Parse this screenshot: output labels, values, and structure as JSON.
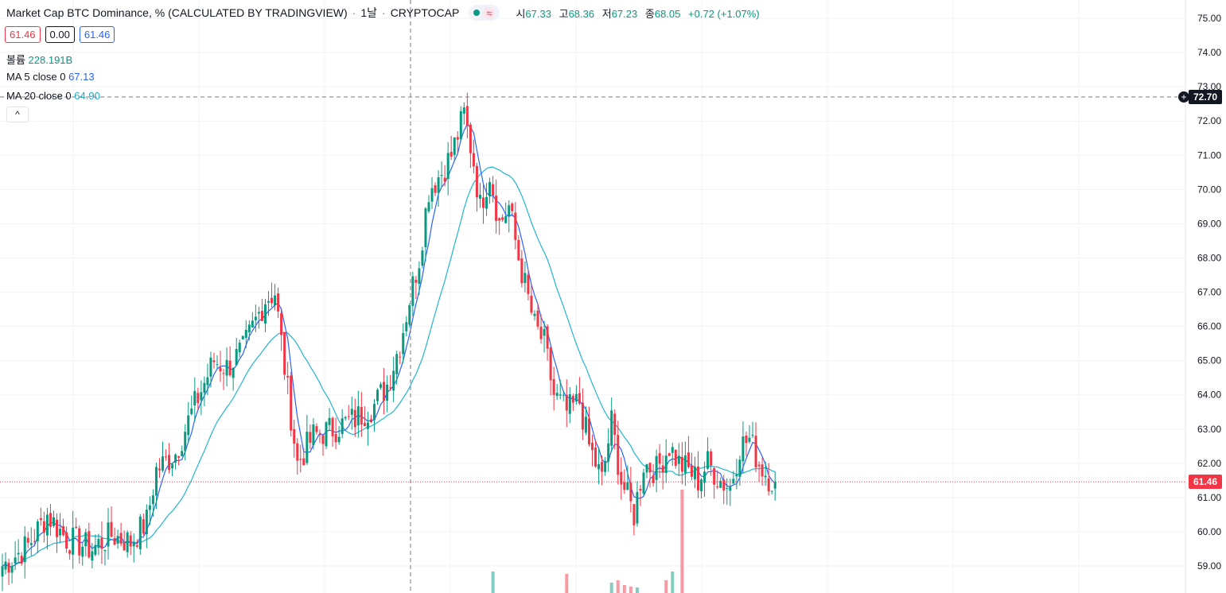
{
  "header": {
    "title": "Market Cap BTC Dominance, % (CALCULATED BY TRADINGVIEW)",
    "interval": "1날",
    "exchange": "CRYPTOCAP",
    "wave_icon": "≈",
    "ohlc": {
      "open_label": "시",
      "open": "67.33",
      "high_label": "고",
      "high": "68.36",
      "low_label": "저",
      "low": "67.23",
      "close_label": "종",
      "close": "68.05",
      "change": "+0.72 (+1.07%)"
    }
  },
  "price_boxes": {
    "bid": "61.46",
    "spread": "0.00",
    "ask": "61.46"
  },
  "indicators": {
    "volume_label": "볼륨",
    "volume_value": "228.191B",
    "ma5_label": "MA 5 close 0",
    "ma5_value": "67.13",
    "ma20_label": "MA 20 close 0",
    "ma20_value": "64.90"
  },
  "collapse_icon": "^",
  "crosshair_price": "72.70",
  "last_price": "61.46",
  "colors": {
    "up": "#089981",
    "down": "#f23645",
    "ma5": "#2962ff",
    "ma20": "#22b5d0"
  },
  "chart_data": {
    "type": "candlestick",
    "y_ticks": [
      "59.00",
      "60.00",
      "61.00",
      "62.00",
      "63.00",
      "64.00",
      "65.00",
      "66.00",
      "67.00",
      "68.00",
      "69.00",
      "70.00",
      "71.00",
      "72.00",
      "73.00",
      "74.00",
      "75.00"
    ],
    "ylim": [
      58.3,
      75.3
    ],
    "close_anchors": [
      [
        0,
        59.0
      ],
      [
        8,
        59.6
      ],
      [
        14,
        60.5
      ],
      [
        20,
        59.8
      ],
      [
        28,
        59.5
      ],
      [
        34,
        59.9
      ],
      [
        40,
        59.7
      ],
      [
        45,
        60.3
      ],
      [
        48,
        61.8
      ],
      [
        54,
        62.3
      ],
      [
        60,
        63.7
      ],
      [
        66,
        65.0
      ],
      [
        70,
        64.8
      ],
      [
        75,
        65.3
      ],
      [
        82,
        66.8
      ],
      [
        85,
        67.0
      ],
      [
        88,
        64.8
      ],
      [
        92,
        62.0
      ],
      [
        97,
        62.8
      ],
      [
        103,
        63.0
      ],
      [
        110,
        63.3
      ],
      [
        116,
        63.7
      ],
      [
        120,
        64.3
      ],
      [
        124,
        65.5
      ],
      [
        127,
        66.8
      ],
      [
        130,
        68.0
      ],
      [
        133,
        70.0
      ],
      [
        137,
        70.5
      ],
      [
        140,
        71.0
      ],
      [
        144,
        72.2
      ],
      [
        147,
        70.8
      ],
      [
        149,
        69.5
      ],
      [
        152,
        70.5
      ],
      [
        155,
        69.0
      ],
      [
        158,
        69.5
      ],
      [
        161,
        68.0
      ],
      [
        163,
        67.2
      ],
      [
        166,
        66.0
      ],
      [
        169,
        65.5
      ],
      [
        172,
        64.0
      ],
      [
        176,
        63.5
      ],
      [
        180,
        63.8
      ],
      [
        183,
        62.5
      ],
      [
        187,
        61.5
      ],
      [
        190,
        63.2
      ],
      [
        193,
        61.5
      ],
      [
        197,
        60.5
      ],
      [
        200,
        62.0
      ],
      [
        204,
        61.8
      ],
      [
        208,
        62.5
      ],
      [
        211,
        62.0
      ],
      [
        214,
        61.8
      ],
      [
        217,
        61.5
      ],
      [
        220,
        62.0
      ],
      [
        224,
        61.5
      ],
      [
        227,
        61.3
      ],
      [
        230,
        62.5
      ],
      [
        233,
        62.7
      ],
      [
        236,
        62.0
      ],
      [
        239,
        61.6
      ],
      [
        241,
        61.46
      ]
    ],
    "volume_bars": [
      {
        "i": 153,
        "h": 27,
        "up": true
      },
      {
        "i": 176,
        "h": 24,
        "up": false
      },
      {
        "i": 190,
        "h": 13,
        "up": true
      },
      {
        "i": 192,
        "h": 16,
        "up": false
      },
      {
        "i": 194,
        "h": 10,
        "up": false
      },
      {
        "i": 196,
        "h": 8,
        "up": false
      },
      {
        "i": 198,
        "h": 7,
        "up": true
      },
      {
        "i": 207,
        "h": 16,
        "up": false
      },
      {
        "i": 209,
        "h": 27,
        "up": true
      },
      {
        "i": 212,
        "h": 130,
        "up": false
      }
    ]
  }
}
